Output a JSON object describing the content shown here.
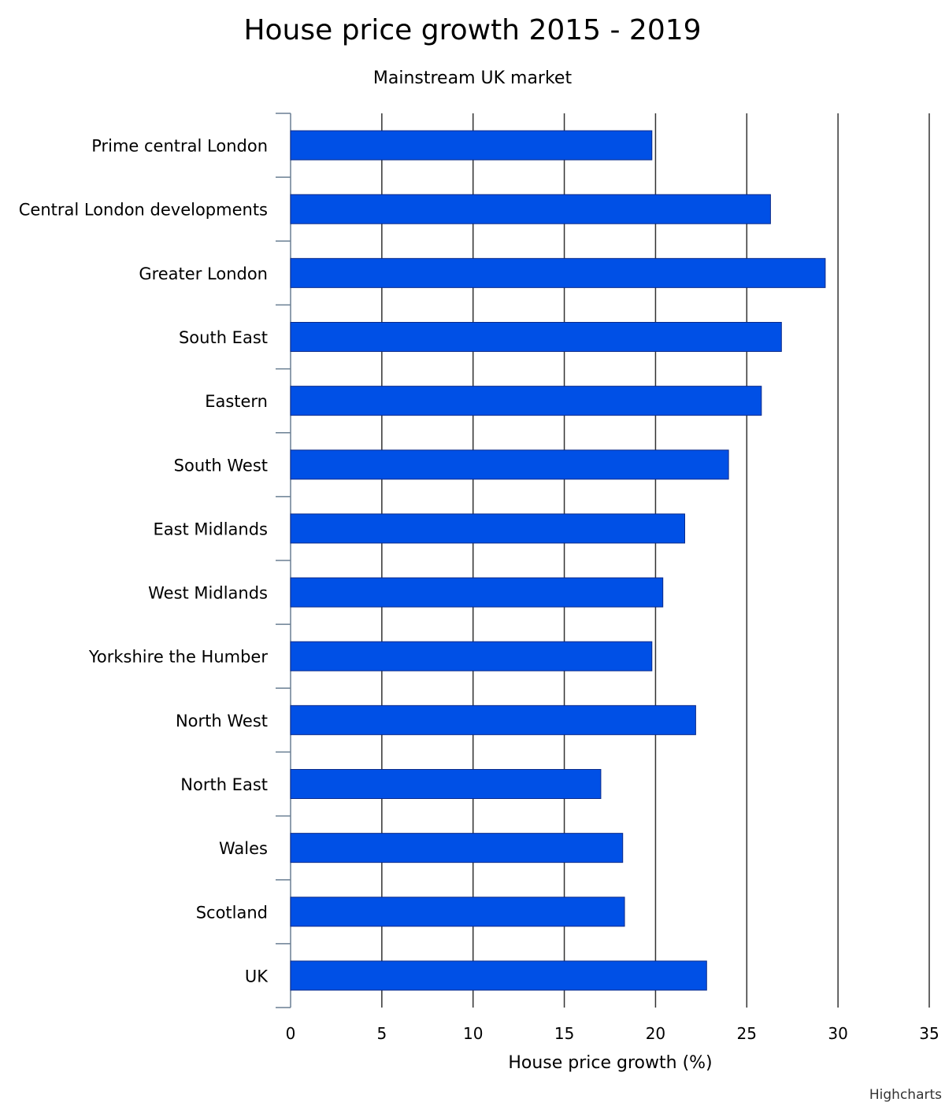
{
  "chart_data": {
    "type": "bar",
    "orientation": "horizontal",
    "title": "House price growth 2015 - 2019",
    "subtitle": "Mainstream UK market",
    "xlabel": "House price growth (%)",
    "categories": [
      "Prime central London",
      "Central London developments",
      "Greater London",
      "South East",
      "Eastern",
      "South West",
      "East Midlands",
      "West Midlands",
      "Yorkshire the Humber",
      "North West",
      "North East",
      "Wales",
      "Scotland",
      "UK"
    ],
    "values": [
      19.8,
      26.3,
      29.3,
      26.9,
      25.8,
      24.0,
      21.6,
      20.4,
      19.8,
      22.2,
      17.0,
      18.2,
      18.3,
      22.8
    ],
    "value_axis": {
      "min": 0,
      "max": 35,
      "ticks": [
        "0",
        "5",
        "10",
        "15",
        "20",
        "25",
        "30",
        "35"
      ]
    },
    "grid": true,
    "legend": "none",
    "bar_color": "#0050e6",
    "credits": "Highcharts"
  }
}
